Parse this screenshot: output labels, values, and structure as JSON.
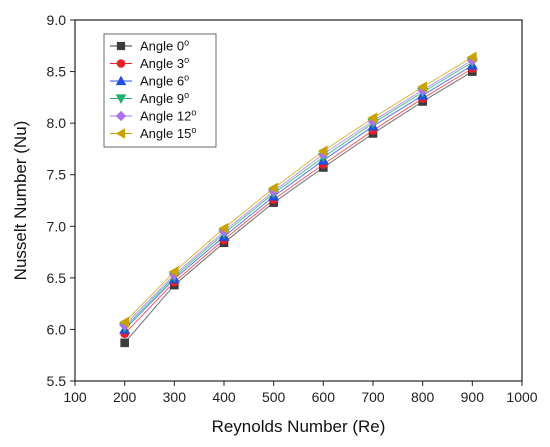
{
  "chart_data": {
    "type": "line",
    "xlabel": "Reynolds Number (Re)",
    "ylabel": "Nusselt Number (Nu)",
    "xlim": [
      100,
      1000
    ],
    "ylim": [
      5.5,
      9.0
    ],
    "xticks": [
      100,
      200,
      300,
      400,
      500,
      600,
      700,
      800,
      900,
      1000
    ],
    "yticks": [
      5.5,
      6.0,
      6.5,
      7.0,
      7.5,
      8.0,
      8.5,
      9.0
    ],
    "ytick_labels": [
      "5.5",
      "6.0",
      "6.5",
      "7.0",
      "7.5",
      "8.0",
      "8.5",
      "9.0"
    ],
    "grid": false,
    "legend_position": "top-left",
    "x": [
      200,
      300,
      400,
      500,
      600,
      700,
      800,
      900
    ],
    "series": [
      {
        "name": "Angle 0",
        "sup": "o",
        "marker": "square",
        "color": "#3c3c3c",
        "values": [
          5.87,
          6.43,
          6.84,
          7.23,
          7.57,
          7.9,
          8.21,
          8.5
        ]
      },
      {
        "name": "Angle 3",
        "sup": "o",
        "marker": "circle",
        "color": "#e8212b",
        "values": [
          5.96,
          6.46,
          6.87,
          7.26,
          7.6,
          7.93,
          8.24,
          8.53
        ]
      },
      {
        "name": "Angle 6",
        "sup": "o",
        "marker": "triangle-up",
        "color": "#1f4ee0",
        "values": [
          6.0,
          6.49,
          6.9,
          7.29,
          7.64,
          7.97,
          8.27,
          8.56
        ]
      },
      {
        "name": "Angle 9",
        "sup": "o",
        "marker": "triangle-down",
        "color": "#1fae6e",
        "values": [
          6.02,
          6.51,
          6.93,
          7.32,
          7.67,
          8.0,
          8.3,
          8.59
        ]
      },
      {
        "name": "Angle 12",
        "sup": "o",
        "marker": "diamond",
        "color": "#a974e8",
        "values": [
          6.04,
          6.53,
          6.95,
          7.34,
          7.7,
          8.02,
          8.32,
          8.61
        ]
      },
      {
        "name": "Angle 15",
        "sup": "o",
        "marker": "triangle-left",
        "color": "#c8a200",
        "values": [
          6.07,
          6.56,
          6.98,
          7.37,
          7.73,
          8.05,
          8.35,
          8.64
        ]
      }
    ]
  }
}
